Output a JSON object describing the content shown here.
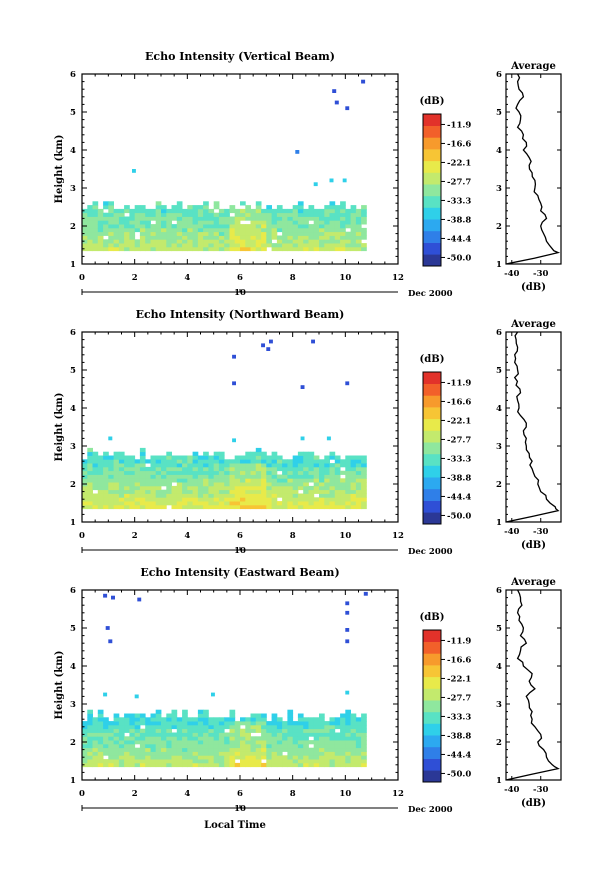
{
  "chart_data": [
    {
      "type": "heatmap",
      "title": "Echo Intensity (Vertical Beam)",
      "xlabel": "",
      "ylabel": "Height (km)",
      "xlim": [
        0,
        12
      ],
      "ylim": [
        1,
        6
      ],
      "x_ticks": [
        "0",
        "2",
        "4",
        "6",
        "8",
        "10",
        "12"
      ],
      "y_ticks": [
        "1",
        "2",
        "3",
        "4",
        "5",
        "6"
      ],
      "date_marker": "10",
      "date_label": "Dec 2000",
      "colorbar": {
        "label": "(dB)",
        "levels": [
          "-11.9",
          "-16.6",
          "-22.1",
          "-27.7",
          "-33.3",
          "-38.8",
          "-44.4",
          "-50.0"
        ]
      },
      "data_extent": {
        "time": [
          0,
          10.8
        ],
        "height": [
          1.35,
          2.6
        ]
      },
      "echo_profile": [
        {
          "height": 1.35,
          "db": -28
        },
        {
          "height": 1.6,
          "db": -30
        },
        {
          "height": 1.9,
          "db": -31
        },
        {
          "height": 2.2,
          "db": -33
        },
        {
          "height": 2.5,
          "db": -34
        }
      ],
      "sparse_echoes": [
        {
          "time": 1.9,
          "height": 3.4,
          "db": -36
        },
        {
          "time": 8.1,
          "height": 3.9,
          "db": -44
        },
        {
          "time": 9.5,
          "height": 5.5,
          "db": -46
        },
        {
          "time": 9.6,
          "height": 5.2,
          "db": -46
        },
        {
          "time": 10.0,
          "height": 5.05,
          "db": -46
        },
        {
          "time": 10.6,
          "height": 5.75,
          "db": -46
        },
        {
          "time": 9.4,
          "height": 3.15,
          "db": -36
        },
        {
          "time": 9.9,
          "height": 3.15,
          "db": -36
        },
        {
          "time": 8.8,
          "height": 3.05,
          "db": -36
        }
      ],
      "average_profile": {
        "title": "Average",
        "xlabel": "(dB)",
        "x_ticks": [
          "-40",
          "-30"
        ],
        "xlim": [
          -42,
          -23
        ],
        "ylim": [
          1,
          6
        ],
        "y_ticks": [
          "1",
          "2",
          "3",
          "4",
          "5",
          "6"
        ],
        "height": [
          1.0,
          1.3,
          1.4,
          1.6,
          1.8,
          2.0,
          2.2,
          2.4,
          2.6,
          2.8,
          3.0,
          3.2,
          3.4,
          3.6,
          3.8,
          4.0,
          4.2,
          4.4,
          4.6,
          4.8,
          5.0,
          5.2,
          5.4,
          5.6,
          5.8,
          6.0
        ],
        "db": [
          -42,
          -24,
          -26,
          -28,
          -29,
          -30,
          -28,
          -30,
          -30,
          -31,
          -32,
          -32,
          -33,
          -34,
          -34,
          -36,
          -35,
          -36,
          -38,
          -37,
          -37.5,
          -38,
          -36,
          -37.5,
          -38,
          -38
        ]
      }
    },
    {
      "type": "heatmap",
      "title": "Echo Intensity (Northward Beam)",
      "xlabel": "",
      "ylabel": "Height (km)",
      "xlim": [
        0,
        12
      ],
      "ylim": [
        1,
        6
      ],
      "x_ticks": [
        "0",
        "2",
        "4",
        "6",
        "8",
        "10",
        "12"
      ],
      "y_ticks": [
        "1",
        "2",
        "3",
        "4",
        "5",
        "6"
      ],
      "date_marker": "10",
      "date_label": "Dec 2000",
      "colorbar": {
        "label": "(dB)",
        "levels": [
          "-11.9",
          "-16.6",
          "-22.1",
          "-27.7",
          "-33.3",
          "-38.8",
          "-44.4",
          "-50.0"
        ]
      },
      "data_extent": {
        "time": [
          0,
          10.8
        ],
        "height": [
          1.35,
          2.85
        ]
      },
      "echo_profile": [
        {
          "height": 1.35,
          "db": -26
        },
        {
          "height": 1.6,
          "db": -28
        },
        {
          "height": 1.9,
          "db": -30
        },
        {
          "height": 2.2,
          "db": -32
        },
        {
          "height": 2.5,
          "db": -34
        }
      ],
      "sparse_echoes": [
        {
          "time": 5.7,
          "height": 5.3,
          "db": -46
        },
        {
          "time": 5.7,
          "height": 4.6,
          "db": -46
        },
        {
          "time": 6.8,
          "height": 5.6,
          "db": -46
        },
        {
          "time": 7.1,
          "height": 5.7,
          "db": -46
        },
        {
          "time": 7.0,
          "height": 5.5,
          "db": -46
        },
        {
          "time": 8.7,
          "height": 5.7,
          "db": -46
        },
        {
          "time": 8.3,
          "height": 4.5,
          "db": -46
        },
        {
          "time": 10.0,
          "height": 4.6,
          "db": -46
        },
        {
          "time": 1.0,
          "height": 3.15,
          "db": -36
        },
        {
          "time": 5.7,
          "height": 3.1,
          "db": -36
        },
        {
          "time": 8.3,
          "height": 3.15,
          "db": -36
        },
        {
          "time": 9.3,
          "height": 3.15,
          "db": -36
        }
      ],
      "average_profile": {
        "title": "Average",
        "xlabel": "(dB)",
        "x_ticks": [
          "-40",
          "-30"
        ],
        "xlim": [
          -42,
          -23
        ],
        "ylim": [
          1,
          6
        ],
        "y_ticks": [
          "1",
          "2",
          "3",
          "4",
          "5",
          "6"
        ],
        "height": [
          1.0,
          1.3,
          1.4,
          1.6,
          1.8,
          2.0,
          2.2,
          2.4,
          2.6,
          2.8,
          3.0,
          3.2,
          3.4,
          3.6,
          3.8,
          4.0,
          4.2,
          4.4,
          4.6,
          4.8,
          5.0,
          5.2,
          5.4,
          5.6,
          5.8,
          6.0
        ],
        "db": [
          -42,
          -24,
          -25,
          -28,
          -30,
          -31,
          -32,
          -33,
          -33,
          -34,
          -35,
          -35,
          -36,
          -35,
          -37,
          -37.5,
          -38,
          -37,
          -38.5,
          -39,
          -38,
          -39,
          -39,
          -38,
          -38.5,
          -38
        ]
      }
    },
    {
      "type": "heatmap",
      "title": "Echo Intensity (Eastward Beam)",
      "xlabel": "Local Time",
      "ylabel": "Height (km)",
      "xlim": [
        0,
        12
      ],
      "ylim": [
        1,
        6
      ],
      "x_ticks": [
        "0",
        "2",
        "4",
        "6",
        "8",
        "10",
        "12"
      ],
      "y_ticks": [
        "1",
        "2",
        "3",
        "4",
        "5",
        "6"
      ],
      "date_marker": "10",
      "date_label": "Dec 2000",
      "colorbar": {
        "label": "(dB)",
        "levels": [
          "-11.9",
          "-16.6",
          "-22.1",
          "-27.7",
          "-33.3",
          "-38.8",
          "-44.4",
          "-50.0"
        ]
      },
      "data_extent": {
        "time": [
          0,
          10.8
        ],
        "height": [
          1.35,
          2.75
        ]
      },
      "echo_profile": [
        {
          "height": 1.35,
          "db": -28
        },
        {
          "height": 1.6,
          "db": -30
        },
        {
          "height": 1.9,
          "db": -32
        },
        {
          "height": 2.2,
          "db": -33
        },
        {
          "height": 2.5,
          "db": -35
        }
      ],
      "sparse_echoes": [
        {
          "time": 0.8,
          "height": 5.8,
          "db": -46
        },
        {
          "time": 1.1,
          "height": 5.75,
          "db": -46
        },
        {
          "time": 2.1,
          "height": 5.7,
          "db": -46
        },
        {
          "time": 0.9,
          "height": 4.95,
          "db": -46
        },
        {
          "time": 1.0,
          "height": 4.6,
          "db": -46
        },
        {
          "time": 10.0,
          "height": 5.6,
          "db": -46
        },
        {
          "time": 10.0,
          "height": 5.35,
          "db": -46
        },
        {
          "time": 10.0,
          "height": 4.9,
          "db": -46
        },
        {
          "time": 10.0,
          "height": 4.6,
          "db": -46
        },
        {
          "time": 10.7,
          "height": 5.85,
          "db": -46
        },
        {
          "time": 0.8,
          "height": 3.2,
          "db": -36
        },
        {
          "time": 2.0,
          "height": 3.15,
          "db": -36
        },
        {
          "time": 4.9,
          "height": 3.2,
          "db": -36
        },
        {
          "time": 10.0,
          "height": 3.25,
          "db": -36
        }
      ],
      "average_profile": {
        "title": "Average",
        "xlabel": "(dB)",
        "x_ticks": [
          "-40",
          "-30"
        ],
        "xlim": [
          -42,
          -23
        ],
        "ylim": [
          1,
          6
        ],
        "y_ticks": [
          "1",
          "2",
          "3",
          "4",
          "5",
          "6"
        ],
        "height": [
          1.0,
          1.3,
          1.4,
          1.6,
          1.8,
          2.0,
          2.2,
          2.4,
          2.6,
          2.8,
          3.0,
          3.2,
          3.4,
          3.6,
          3.8,
          4.0,
          4.2,
          4.4,
          4.6,
          4.8,
          5.0,
          5.2,
          5.4,
          5.6,
          5.8,
          6.0
        ],
        "db": [
          -42,
          -24,
          -26,
          -28,
          -29,
          -31,
          -30,
          -32,
          -33,
          -33,
          -34,
          -35,
          -32,
          -34,
          -33,
          -36,
          -38,
          -37,
          -35,
          -37,
          -36,
          -37.5,
          -38,
          -36.5,
          -37,
          -38
        ]
      }
    }
  ],
  "colors": {
    "scale": [
      "#2b3896",
      "#2f4fd6",
      "#2f7fe8",
      "#2ca9f0",
      "#2fd0e9",
      "#59e2c4",
      "#8fe79e",
      "#c3ea6d",
      "#e8ea4a",
      "#f7c535",
      "#f79a2c",
      "#f2602a",
      "#e2322a"
    ]
  }
}
